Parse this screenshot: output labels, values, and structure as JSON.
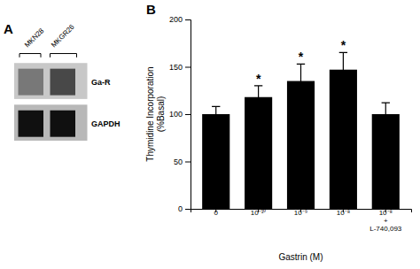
{
  "chart_data": [
    {
      "type": "blot",
      "title": "A",
      "categories": [
        "MKN28",
        "MKGR26"
      ],
      "series": [
        {
          "name": "Ga-R",
          "color": "#c8c8c8",
          "colors": [
            "#787878",
            "#484848"
          ]
        },
        {
          "name": "GAPDH",
          "color": "#b8b8b8",
          "colors": [
            "#101010",
            "#101010"
          ]
        }
      ]
    },
    {
      "type": "bar",
      "title": "B",
      "categories": [
        "0",
        "10⁻¹⁰",
        "10⁻⁹",
        "10⁻⁸",
        "10⁻⁸\n+\nL-740,093"
      ],
      "values": [
        100,
        118,
        135,
        147,
        100
      ],
      "errors": [
        8,
        12,
        18,
        18,
        12
      ],
      "annotations": [
        null,
        "*",
        "*",
        "*",
        null
      ],
      "color": "#000000",
      "xlabel": "Gastrin (M)",
      "ylabel": "Thymidine Incorporation\n(%Basal)",
      "ylim": [
        0,
        200
      ],
      "yticks": [
        0,
        50,
        100,
        150,
        200
      ],
      "grid": false
    }
  ]
}
